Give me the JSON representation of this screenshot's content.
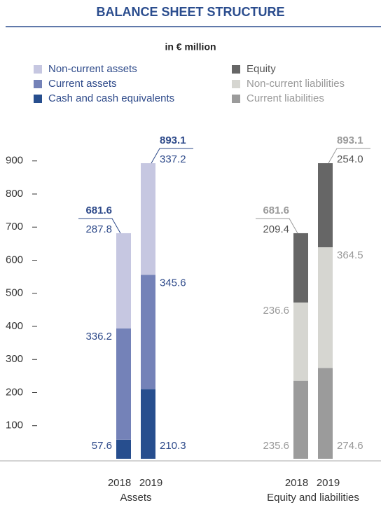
{
  "chart_data": {
    "type": "stacked_bar",
    "title": "BALANCE SHEET STRUCTURE",
    "subtitle": "in € million",
    "categories": [
      "2018",
      "2019",
      "2018",
      "2019"
    ],
    "groups": [
      "Assets",
      "Equity and liabilities"
    ],
    "series": [
      {
        "name": "Non-current assets",
        "color": "#c6c7e1",
        "label_color": "#2e4a8a",
        "values": [
          287.8,
          337.2,
          null,
          null
        ]
      },
      {
        "name": "Current assets",
        "color": "#7482b8",
        "label_color": "#2e4a8a",
        "values": [
          336.2,
          345.6,
          null,
          null
        ]
      },
      {
        "name": "Cash and cash equivalents",
        "color": "#274e8e",
        "label_color": "#2e4a8a",
        "values": [
          57.6,
          210.3,
          null,
          null
        ]
      },
      {
        "name": "Equity",
        "color": "#666666",
        "label_color": "#555555",
        "values": [
          null,
          null,
          209.4,
          254.0
        ],
        "value_labels": [
          null,
          null,
          "209.4",
          "254.0"
        ]
      },
      {
        "name": "Non-current liabilities",
        "color": "#d6d6d1",
        "label_color": "#9a9a9a",
        "values": [
          null,
          null,
          236.6,
          364.5
        ]
      },
      {
        "name": "Current liabilities",
        "color": "#9b9b9b",
        "label_color": "#9a9a9a",
        "values": [
          null,
          null,
          235.6,
          274.6
        ]
      }
    ],
    "totals": [
      681.6,
      893.1,
      681.6,
      893.1
    ],
    "ylim": [
      0,
      1000
    ],
    "yticks": [
      100,
      200,
      300,
      400,
      500,
      600,
      700,
      800,
      900
    ]
  }
}
